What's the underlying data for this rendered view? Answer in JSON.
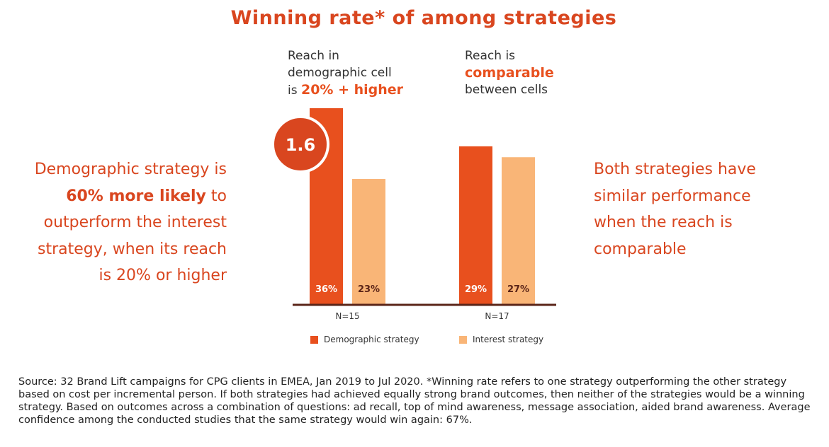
{
  "title": "Winning rate* of among strategies",
  "captions": {
    "left": {
      "line1": "Reach in",
      "line2": "demographic cell",
      "line3_prefix": "is ",
      "line3_highlight": "20% + higher"
    },
    "right": {
      "line1": "Reach is",
      "line2_highlight": "comparable",
      "line3": "between cells"
    }
  },
  "left_text": {
    "line1": "Demographic strategy is",
    "line2_bold": "60% more likely",
    "line2_rest": " to",
    "line3": "outperform the interest",
    "line4": "strategy, when its reach",
    "line5": "is 20% or higher"
  },
  "right_text": {
    "line1": "Both strategies have",
    "line2": "similar performance",
    "line3": "when the reach is",
    "line4": "comparable"
  },
  "badge": "1.6",
  "colors": {
    "demographic": "#e8501e",
    "interest": "#f9b577",
    "accent": "#d9461f",
    "axis": "#5a2418"
  },
  "chart_data": {
    "type": "bar",
    "categories": [
      "N=15",
      "N=17"
    ],
    "series": [
      {
        "name": "Demographic strategy",
        "values": [
          36,
          29
        ],
        "labels": [
          "36%",
          "29%"
        ]
      },
      {
        "name": "Interest strategy",
        "values": [
          23,
          27
        ],
        "labels": [
          "23%",
          "27%"
        ]
      }
    ],
    "ylim": [
      0,
      40
    ],
    "legend": "bottom"
  },
  "source": "Source: 32 Brand Lift campaigns for CPG clients in EMEA, Jan 2019 to Jul 2020. *Winning rate refers to one strategy outperforming the other strategy based on cost per incremental person. If both strategies had achieved equally strong brand outcomes, then neither of the strategies would be a winning strategy.  Based on outcomes across a combination of questions: ad recall, top of mind awareness, message association, aided brand awareness. Average confidence among the conducted studies that the same strategy would win again: 67%."
}
